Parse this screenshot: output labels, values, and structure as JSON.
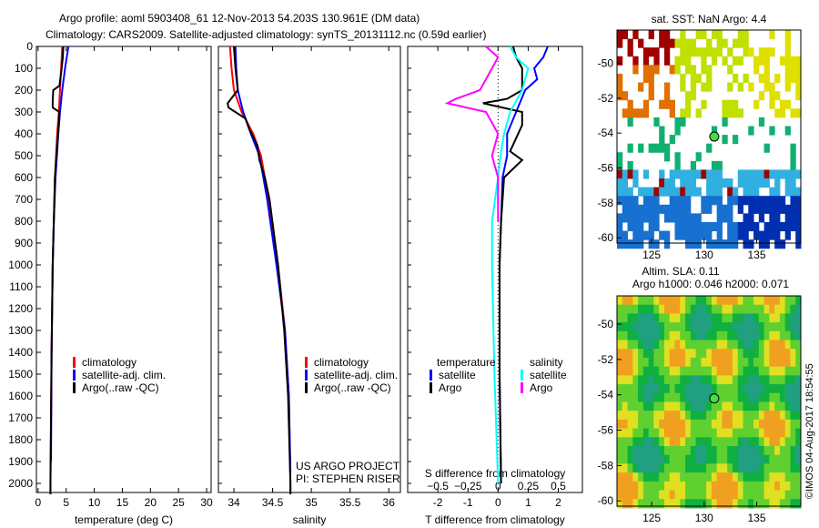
{
  "title_line1": "Argo profile: aoml 5903408_61 12-Nov-2013 54.203S 130.961E (DM data)",
  "title_line2": "Climatology: CARS2009. Satellite-adjusted climatology: synTS_20131112.nc (0.59d earlier)",
  "chart_data": [
    {
      "type": "line",
      "name": "temperature",
      "xlabel": "temperature (deg C)",
      "xlim": [
        -0.3,
        30.8
      ],
      "ylim": [
        2060,
        0
      ],
      "xticks": [
        0,
        5,
        10,
        15,
        20,
        25,
        30
      ],
      "yticks": [
        0,
        100,
        200,
        300,
        400,
        500,
        600,
        700,
        800,
        900,
        1000,
        1100,
        1200,
        1300,
        1400,
        1500,
        1600,
        1700,
        1800,
        1900,
        2000
      ],
      "legend": [
        "climatology",
        "satellite-adj. clim.",
        "Argo(..raw -QC)"
      ],
      "legend_colors": [
        "#ff0000",
        "#0000ff",
        "#000000"
      ],
      "series": [
        {
          "name": "climatology",
          "color": "#ff0000",
          "depth": [
            0,
            100,
            200,
            300,
            400,
            600,
            800,
            1000,
            1400,
            2000,
            2050
          ],
          "values": [
            4.3,
            4.1,
            3.9,
            3.7,
            3.4,
            3.0,
            2.8,
            2.6,
            2.4,
            2.2,
            2.2
          ]
        },
        {
          "name": "satellite-adj. clim.",
          "color": "#0000ff",
          "depth": [
            0,
            100,
            200,
            300,
            400,
            600,
            800,
            1000,
            1400,
            1900
          ],
          "values": [
            5.4,
            4.8,
            4.3,
            3.9,
            3.6,
            3.1,
            2.8,
            2.6,
            2.4,
            2.3
          ]
        },
        {
          "name": "Argo",
          "color": "#000000",
          "depth": [
            0,
            50,
            100,
            180,
            200,
            250,
            280,
            300,
            350,
            450,
            600,
            800,
            1000,
            1400,
            2000,
            2050
          ],
          "values": [
            4.5,
            4.4,
            4.2,
            3.8,
            2.7,
            2.6,
            2.6,
            3.8,
            3.7,
            3.4,
            3.0,
            2.8,
            2.6,
            2.4,
            2.2,
            2.2
          ]
        }
      ]
    },
    {
      "type": "line",
      "name": "salinity",
      "xlabel": "salinity",
      "xlim": [
        33.8,
        36.15
      ],
      "ylim": [
        2060,
        0
      ],
      "xticks": [
        34,
        34.5,
        35,
        35.5,
        36
      ],
      "legend": [
        "climatology",
        "satellite-adj. clim.",
        "Argo(..raw -QC)"
      ],
      "legend_colors": [
        "#ff0000",
        "#0000ff",
        "#000000"
      ],
      "series": [
        {
          "name": "climatology",
          "color": "#ff0000",
          "depth": [
            0,
            100,
            200,
            300,
            400,
            500,
            700,
            1000,
            1300,
            1600,
            2000,
            2050
          ],
          "values": [
            33.95,
            33.97,
            34.0,
            34.1,
            34.25,
            34.35,
            34.45,
            34.57,
            34.66,
            34.71,
            34.73,
            34.73
          ]
        },
        {
          "name": "satellite-adj. clim.",
          "color": "#0000ff",
          "depth": [
            0,
            100,
            200,
            300,
            400,
            500,
            700,
            1000,
            1300,
            1600,
            1950
          ],
          "values": [
            34.02,
            34.03,
            34.05,
            34.12,
            34.22,
            34.33,
            34.43,
            34.55,
            34.66,
            34.71,
            34.73
          ]
        },
        {
          "name": "Argo",
          "color": "#000000",
          "depth": [
            0,
            100,
            200,
            260,
            280,
            330,
            380,
            450,
            520,
            600,
            700,
            1000,
            1300,
            1600,
            2000,
            2050
          ],
          "values": [
            34.0,
            34.02,
            34.05,
            33.92,
            33.93,
            34.15,
            34.2,
            34.3,
            34.33,
            34.4,
            34.46,
            34.57,
            34.65,
            34.7,
            34.73,
            34.73
          ]
        }
      ],
      "annotations": [
        "US ARGO PROJECT",
        "PI: STEPHEN RISER"
      ]
    },
    {
      "type": "line",
      "name": "difference",
      "xlabel": "T difference from climatology",
      "xlabel2": "S difference from climatology",
      "xlim": [
        -3,
        2.8
      ],
      "xticks": [
        -2,
        -1,
        0,
        1,
        2
      ],
      "xticks2": [
        -0.5,
        -0.25,
        0,
        0.25,
        0.5
      ],
      "legend_headers": [
        "temperature",
        "salinity"
      ],
      "legend": [
        "satellite",
        "Argo",
        "satellite",
        "Argo"
      ],
      "legend_colors": [
        "#0000ff",
        "#000000",
        "#00ffff",
        "#ff00ff"
      ],
      "series": [
        {
          "name": "T satellite",
          "color": "#0000ff",
          "depth": [
            0,
            50,
            100,
            150,
            200,
            300,
            400,
            500,
            600,
            800,
            1000,
            1500,
            2000
          ],
          "values": [
            1.65,
            1.5,
            1.2,
            1.3,
            0.9,
            0.6,
            0.3,
            0.3,
            0.15,
            0.1,
            0.05,
            0.05,
            0.1
          ]
        },
        {
          "name": "T Argo",
          "color": "#000000",
          "depth": [
            0,
            50,
            100,
            200,
            240,
            260,
            300,
            360,
            420,
            480,
            520,
            600,
            800,
            1000,
            1500,
            2000
          ],
          "values": [
            0.5,
            0.6,
            0.8,
            0.8,
            0.3,
            -0.5,
            0.8,
            0.8,
            0.6,
            0.4,
            0.8,
            0.2,
            0.1,
            0.05,
            0.05,
            0.1
          ]
        },
        {
          "name": "S satellite",
          "color": "#00ffff",
          "depth": [
            0,
            50,
            100,
            200,
            300,
            400,
            500,
            600,
            800,
            1000,
            1500,
            2000
          ],
          "values": [
            0.1,
            0.15,
            0.25,
            0.2,
            0.1,
            0.05,
            0.02,
            0.0,
            -0.05,
            -0.05,
            -0.03,
            0.0
          ]
        },
        {
          "name": "S Argo",
          "color": "#ff00ff",
          "depth": [
            0,
            50,
            100,
            200,
            240,
            260,
            300,
            400,
            500,
            600,
            800
          ],
          "values": [
            -0.1,
            0.0,
            -0.05,
            -0.15,
            -0.35,
            -0.42,
            -0.1,
            0.0,
            -0.05,
            0.0,
            0.0
          ]
        }
      ]
    },
    {
      "type": "heatmap",
      "name": "sst-map",
      "title": "sat. SST: NaN Argo: 4.4",
      "xticks": [
        125,
        130,
        135
      ],
      "yticks": [
        -50,
        -52,
        -54,
        -56,
        -58,
        -60
      ],
      "xlim": [
        121.7,
        139.2
      ],
      "ylim": [
        -60.3,
        -48.1
      ],
      "marker": {
        "lon": 130.961,
        "lat": -54.203
      }
    },
    {
      "type": "heatmap",
      "name": "sla-map",
      "title": "Altim. SLA: 0.11",
      "subtitle": "Argo h1000: 0.046 h2000: 0.071",
      "xticks": [
        125,
        130,
        135
      ],
      "yticks": [
        -50,
        -52,
        -54,
        -56,
        -58,
        -60
      ],
      "xlim": [
        121.7,
        139.2
      ],
      "ylim": [
        -60.3,
        -48.4
      ],
      "marker": {
        "lon": 130.961,
        "lat": -54.203
      }
    }
  ],
  "credit": "©IMOS 04-Aug-2017 18:54:55"
}
